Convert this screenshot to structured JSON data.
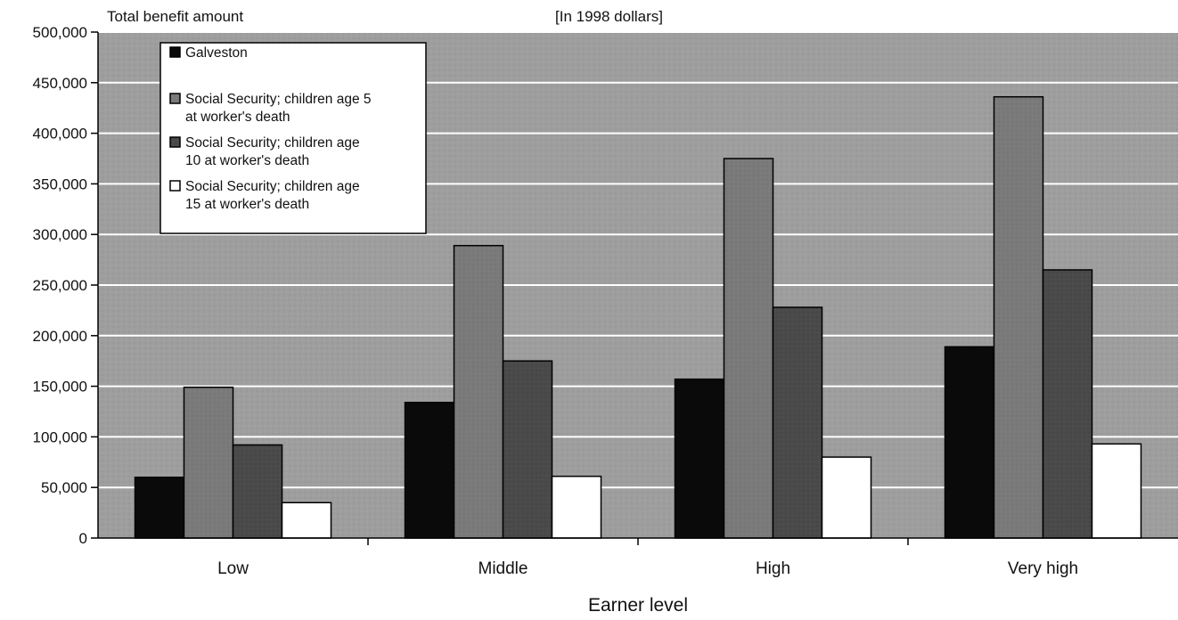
{
  "chart_data": {
    "type": "bar",
    "ylabel": "Total benefit amount",
    "subtitle": "[In 1998 dollars]",
    "xlabel": "Earner level",
    "categories": [
      "Low",
      "Middle",
      "High",
      "Very high"
    ],
    "ylim": [
      0,
      500000
    ],
    "yticks": [
      0,
      50000,
      100000,
      150000,
      200000,
      250000,
      300000,
      350000,
      400000,
      450000,
      500000
    ],
    "ytick_labels": [
      "0",
      "50,000",
      "100,000",
      "150,000",
      "200,000",
      "250,000",
      "300,000",
      "350,000",
      "400,000",
      "450,000",
      "500,000"
    ],
    "grid": true,
    "legend_position": "top-left",
    "series": [
      {
        "name": "Galveston",
        "legend_lines": [
          "Galveston"
        ],
        "color": "#0a0a0a",
        "values": [
          60000,
          134000,
          157000,
          189000
        ]
      },
      {
        "name": "Social Security; children age 5 at worker's death",
        "legend_lines": [
          "Social Security; children age 5",
          "at worker's death"
        ],
        "color": "#7a7a7a",
        "values": [
          149000,
          289000,
          375000,
          436000
        ]
      },
      {
        "name": "Social Security; children age 10 at worker's death",
        "legend_lines": [
          "Social Security; children age",
          "10 at worker's death"
        ],
        "color": "#4a4a4a",
        "values": [
          92000,
          175000,
          228000,
          265000
        ]
      },
      {
        "name": "Social Security; children age 15 at worker's death",
        "legend_lines": [
          "Social Security; children age",
          "15 at worker's death"
        ],
        "color": "#ffffff",
        "values": [
          35000,
          61000,
          80000,
          93000
        ]
      }
    ],
    "colors": {
      "plot_background": "#9e9e9e",
      "gridline": "#ffffff"
    }
  }
}
